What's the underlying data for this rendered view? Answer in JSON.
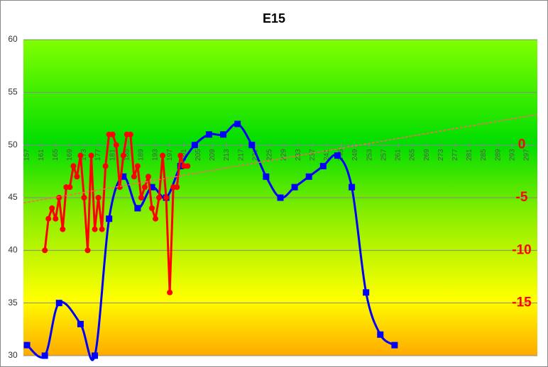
{
  "chart_data": {
    "type": "line",
    "title": "E15",
    "xlim": [
      156,
      300
    ],
    "xticks": [
      157,
      161,
      165,
      169,
      173,
      177,
      181,
      185,
      189,
      193,
      197,
      201,
      205,
      209,
      213,
      217,
      221,
      225,
      229,
      233,
      237,
      241,
      245,
      249,
      253,
      257,
      261,
      265,
      269,
      273,
      277,
      281,
      285,
      289,
      293,
      297
    ],
    "ylim": [
      30,
      60
    ],
    "yticks": [
      30,
      35,
      40,
      45,
      50,
      55,
      60
    ],
    "y2lim": [
      -20,
      10
    ],
    "y2ticks": [
      -15,
      -10,
      -5,
      0
    ],
    "grid": true,
    "series": [
      {
        "color": "#0000ff",
        "marker": "square",
        "axis": "y",
        "x": [
          157,
          162,
          166,
          172,
          176,
          180,
          184,
          188,
          192,
          196,
          200,
          204,
          208,
          212,
          216,
          220,
          224,
          228,
          232,
          236,
          240,
          244,
          248,
          252,
          256,
          260
        ],
        "values": [
          31,
          30,
          35,
          33,
          30,
          43,
          47,
          44,
          46,
          45,
          48,
          50,
          51,
          51,
          52,
          50,
          47,
          45,
          46,
          47,
          48,
          49,
          46,
          36,
          32,
          31
        ]
      },
      {
        "color": "#ff0000",
        "marker": "circle",
        "axis": "y2",
        "x": [
          162,
          163,
          164,
          165,
          166,
          167,
          168,
          169,
          170,
          171,
          172,
          173,
          174,
          175,
          176,
          177,
          178,
          179,
          180,
          181,
          182,
          183,
          184,
          185,
          186,
          187,
          188,
          189,
          190,
          191,
          192,
          193,
          194,
          195,
          196,
          197,
          198,
          199,
          200,
          201,
          202
        ],
        "values": [
          -10,
          -7,
          -6,
          -7,
          -5,
          -8,
          -4,
          -4,
          -2,
          -3,
          -1,
          -5,
          -10,
          -1,
          -8,
          -5,
          -8,
          -2,
          1,
          1,
          0,
          -4,
          -1,
          1,
          1,
          -3,
          -2,
          -5,
          -4,
          -3,
          -6,
          -7,
          -5,
          -1,
          -5,
          -14,
          -4,
          -4,
          -1,
          -2,
          -2
        ]
      },
      {
        "color": "#ff6666",
        "marker": "none",
        "axis": "y2",
        "trend": true,
        "x": [
          156,
          300
        ],
        "values": [
          -5.5,
          2.9
        ]
      }
    ]
  }
}
